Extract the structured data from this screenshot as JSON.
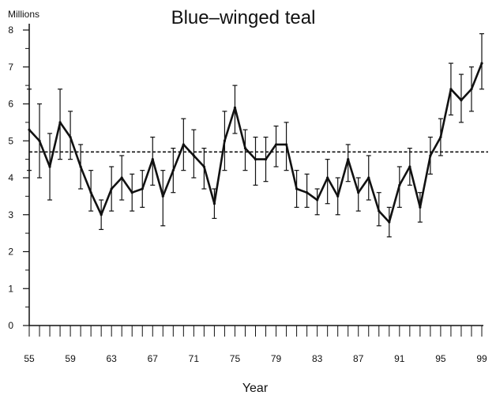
{
  "chart_data": {
    "type": "line",
    "title": "Blue–winged  teal",
    "ylabel": "Millions",
    "xlabel": "Year",
    "xlim": [
      1955,
      1999
    ],
    "ylim": [
      0,
      8
    ],
    "x_tick_labels": [
      "55",
      "59",
      "63",
      "67",
      "71",
      "75",
      "79",
      "83",
      "87",
      "91",
      "95",
      "99"
    ],
    "x_tick_values": [
      1955,
      1959,
      1963,
      1967,
      1971,
      1975,
      1979,
      1983,
      1987,
      1991,
      1995,
      1999
    ],
    "y_ticks": [
      0,
      1,
      2,
      3,
      4,
      5,
      6,
      7,
      8
    ],
    "grid": false,
    "legend": "none",
    "reference_line": {
      "style": "dashed",
      "value": 4.7
    },
    "series": [
      {
        "x": [
          1955,
          1956,
          1957,
          1958,
          1959,
          1960,
          1961,
          1962,
          1963,
          1964,
          1965,
          1966,
          1967,
          1968,
          1969,
          1970,
          1971,
          1972,
          1973,
          1974,
          1975,
          1976,
          1977,
          1978,
          1979,
          1980,
          1981,
          1982,
          1983,
          1984,
          1985,
          1986,
          1987,
          1988,
          1989,
          1990,
          1991,
          1992,
          1993,
          1994,
          1995,
          1996,
          1997,
          1998,
          1999
        ],
        "y": [
          5.3,
          5.0,
          4.3,
          5.5,
          5.1,
          4.3,
          3.6,
          3.0,
          3.7,
          4.0,
          3.6,
          3.7,
          4.5,
          3.5,
          4.2,
          4.9,
          4.6,
          4.3,
          3.3,
          5.0,
          5.9,
          4.8,
          4.5,
          4.5,
          4.9,
          4.9,
          3.7,
          3.6,
          3.4,
          4.0,
          3.5,
          4.5,
          3.6,
          4.0,
          3.1,
          2.8,
          3.8,
          4.3,
          3.2,
          4.6,
          5.1,
          6.4,
          6.1,
          6.4,
          7.1
        ],
        "y_low": [
          4.2,
          4.0,
          3.4,
          4.5,
          4.5,
          3.7,
          3.1,
          2.6,
          3.1,
          3.4,
          3.1,
          3.2,
          3.8,
          2.7,
          3.6,
          4.2,
          4.0,
          3.7,
          2.9,
          4.2,
          5.2,
          4.2,
          3.8,
          3.9,
          4.3,
          4.2,
          3.2,
          3.2,
          3.0,
          3.3,
          3.0,
          3.9,
          3.1,
          3.4,
          2.7,
          2.4,
          3.2,
          3.8,
          2.8,
          4.1,
          4.6,
          5.7,
          5.5,
          5.8,
          6.4
        ],
        "y_high": [
          6.4,
          6.0,
          5.2,
          6.4,
          5.8,
          4.9,
          4.2,
          3.4,
          4.3,
          4.6,
          4.1,
          4.2,
          5.1,
          4.2,
          4.8,
          5.6,
          5.3,
          4.8,
          3.7,
          5.8,
          6.5,
          5.3,
          5.1,
          5.1,
          5.4,
          5.5,
          4.2,
          4.1,
          3.7,
          4.5,
          4.0,
          4.9,
          4.0,
          4.6,
          3.6,
          3.2,
          4.3,
          4.8,
          3.6,
          5.1,
          5.6,
          7.1,
          6.8,
          7.0,
          7.9
        ]
      }
    ]
  }
}
